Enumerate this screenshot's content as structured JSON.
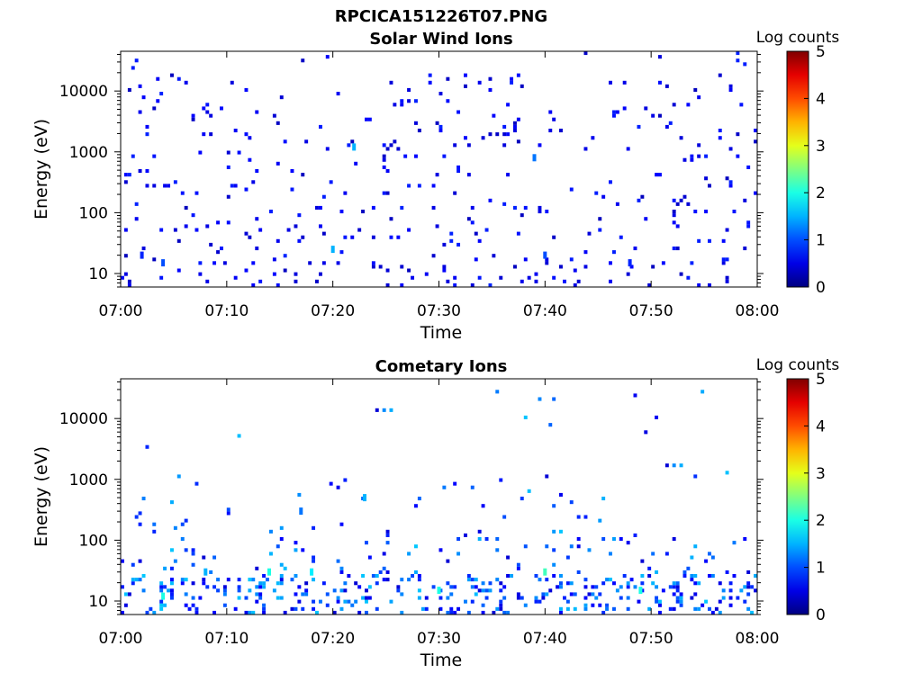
{
  "figure": {
    "filename": "RPCICA151226T07.PNG"
  },
  "colorbar": {
    "label": "Log counts",
    "ticks": [
      "0",
      "1",
      "2",
      "3",
      "4",
      "5"
    ],
    "range": [
      0,
      5
    ],
    "colormap": "jet"
  },
  "chart_data": [
    {
      "type": "heatmap",
      "title": "Solar Wind Ions",
      "xlabel": "Time",
      "ylabel": "Energy (eV)",
      "x_range": [
        "07:00",
        "08:00"
      ],
      "x_ticks": [
        "07:00",
        "07:10",
        "07:20",
        "07:30",
        "07:40",
        "07:50",
        "08:00"
      ],
      "y_scale": "log",
      "y_range": [
        6,
        45000
      ],
      "y_ticks": [
        "10",
        "100",
        "1000",
        "10000"
      ],
      "description_values": "Sparse scattered pixels across 10 eV to 30 keV, mostly 0-1 log counts; a few pixels near 1.5 log counts around 07:20-07:22 near 1000 eV and 20 eV",
      "events": [
        {
          "t": "07:02",
          "e": 20,
          "v": 0.8
        },
        {
          "t": "07:04",
          "e": 15,
          "v": 1.0
        },
        {
          "t": "07:20",
          "e": 25,
          "v": 1.5
        },
        {
          "t": "07:22",
          "e": 1200,
          "v": 1.5
        },
        {
          "t": "07:39",
          "e": 800,
          "v": 1.2
        },
        {
          "t": "07:40",
          "e": 20,
          "v": 1.0
        },
        {
          "t": "07:48",
          "e": 15,
          "v": 0.8
        }
      ]
    },
    {
      "type": "heatmap",
      "title": "Cometary Ions",
      "xlabel": "Time",
      "ylabel": "Energy (eV)",
      "x_range": [
        "07:00",
        "08:00"
      ],
      "x_ticks": [
        "07:00",
        "07:10",
        "07:20",
        "07:30",
        "07:40",
        "07:50",
        "08:00"
      ],
      "y_scale": "log",
      "y_range": [
        6,
        45000
      ],
      "y_ticks": [
        "10",
        "100",
        "1000",
        "10000"
      ],
      "description_values": "Dense low-energy band 6-40 eV with vertical streaks up to ~100-800 eV; peaks ~2 log counts near 07:04, 07:14, 07:18, 07:30, 07:40, 07:49",
      "events": [
        {
          "t": "07:04",
          "e": 12,
          "v": 2.0
        },
        {
          "t": "07:08",
          "e": 30,
          "v": 1.5
        },
        {
          "t": "07:14",
          "e": 30,
          "v": 2.0
        },
        {
          "t": "07:17",
          "e": 300,
          "v": 1.2
        },
        {
          "t": "07:18",
          "e": 30,
          "v": 1.8
        },
        {
          "t": "07:23",
          "e": 500,
          "v": 1.5
        },
        {
          "t": "07:30",
          "e": 15,
          "v": 2.0
        },
        {
          "t": "07:40",
          "e": 30,
          "v": 2.2
        },
        {
          "t": "07:49",
          "e": 15,
          "v": 2.0
        }
      ]
    }
  ]
}
